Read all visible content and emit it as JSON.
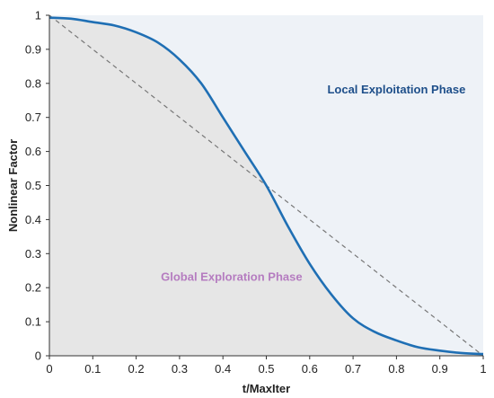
{
  "chart_data": {
    "type": "line",
    "title": "",
    "xlabel": "t/MaxIter",
    "ylabel": "Nonlinear Factor",
    "xlim": [
      0,
      1
    ],
    "ylim": [
      0,
      1
    ],
    "xticks": [
      "0",
      "0.1",
      "0.2",
      "0.3",
      "0.4",
      "0.5",
      "0.6",
      "0.7",
      "0.8",
      "0.9",
      "1"
    ],
    "yticks": [
      "0",
      "0.1",
      "0.2",
      "0.3",
      "0.4",
      "0.5",
      "0.6",
      "0.7",
      "0.8",
      "0.9",
      "1"
    ],
    "grid": false,
    "series": [
      {
        "style": "solid",
        "color": "#1f6fb4",
        "x": [
          0,
          0.05,
          0.1,
          0.15,
          0.2,
          0.25,
          0.3,
          0.35,
          0.4,
          0.45,
          0.5,
          0.55,
          0.6,
          0.65,
          0.7,
          0.75,
          0.8,
          0.85,
          0.9,
          0.95,
          1
        ],
        "y": [
          0.993,
          0.99,
          0.98,
          0.97,
          0.95,
          0.92,
          0.87,
          0.8,
          0.7,
          0.6,
          0.5,
          0.38,
          0.27,
          0.18,
          0.11,
          0.07,
          0.045,
          0.025,
          0.015,
          0.008,
          0.005
        ]
      },
      {
        "style": "dashed",
        "color": "#777777",
        "x": [
          0,
          1
        ],
        "y": [
          1,
          0
        ]
      }
    ],
    "shaded_region": {
      "under": "solid-curve",
      "color": "#e6e6e6"
    },
    "background_color": "#eef2f7",
    "annotations": [
      {
        "text": "Local Exploitation Phase",
        "x": 0.8,
        "y": 0.77,
        "color": "#1e4f8a"
      },
      {
        "text": "Global Exploration Phase",
        "x": 0.42,
        "y": 0.22,
        "color": "#b57cc0"
      }
    ]
  }
}
